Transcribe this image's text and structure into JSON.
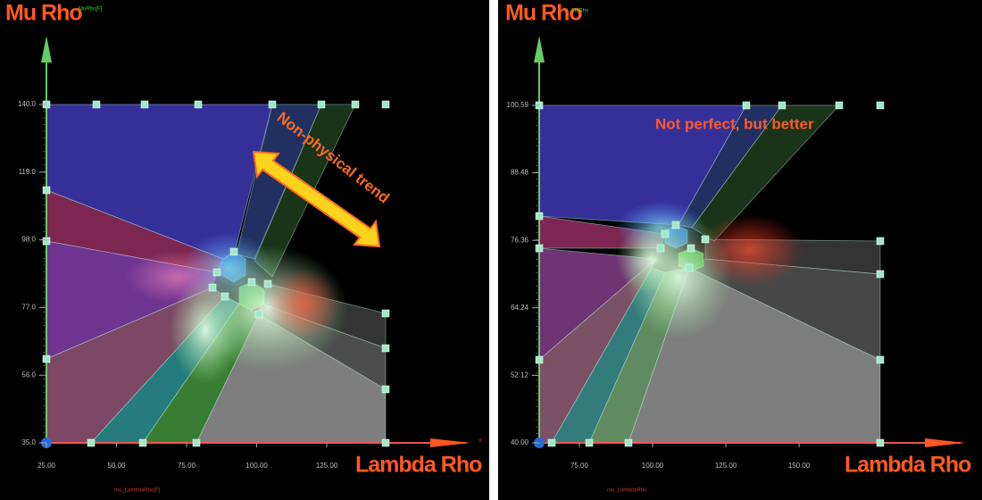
{
  "chart_data": [
    {
      "type": "scatter",
      "title": "Mu Rho",
      "x_label": "Lambda Rho",
      "y_axis_name": "MuRho[F]",
      "x_axis_name": "mu_LambdaRho[F]",
      "x_arrow_label": "X",
      "annotation": "Non-physical trend",
      "xlim": [
        25,
        146
      ],
      "ylim": [
        35,
        140
      ],
      "xticks": [
        {
          "value": 25,
          "label": "25.00"
        },
        {
          "value": 50,
          "label": "50.00"
        },
        {
          "value": 75,
          "label": "75.00"
        },
        {
          "value": 100,
          "label": "100.00"
        },
        {
          "value": 125,
          "label": "125.00"
        }
      ],
      "yticks": [
        {
          "value": 35,
          "label": "35.0"
        },
        {
          "value": 56,
          "label": "56.0"
        },
        {
          "value": 77,
          "label": "77.0"
        },
        {
          "value": 98,
          "label": "98.0"
        },
        {
          "value": 119,
          "label": "119.0"
        },
        {
          "value": 140,
          "label": "140.0"
        }
      ]
    },
    {
      "type": "scatter",
      "title": "Mu Rho",
      "x_label": "Lambda Rho",
      "y_axis_name": "MuRho",
      "x_axis_name": "mu_LambdaRho",
      "annotation": "Not perfect, but better",
      "xlim": [
        61.3,
        177.7
      ],
      "ylim": [
        40,
        100.59
      ],
      "xticks": [
        {
          "value": 75,
          "label": "75.00"
        },
        {
          "value": 100,
          "label": "100.00"
        },
        {
          "value": 125,
          "label": "125.00"
        },
        {
          "value": 150,
          "label": "150.00"
        }
      ],
      "yticks": [
        {
          "value": 40,
          "label": "40.00"
        },
        {
          "value": 52.12,
          "label": "52.12"
        },
        {
          "value": 64.24,
          "label": "64.24"
        },
        {
          "value": 76.36,
          "label": "76.36"
        },
        {
          "value": 88.48,
          "label": "88.48"
        },
        {
          "value": 100.59,
          "label": "100.59"
        }
      ]
    }
  ]
}
